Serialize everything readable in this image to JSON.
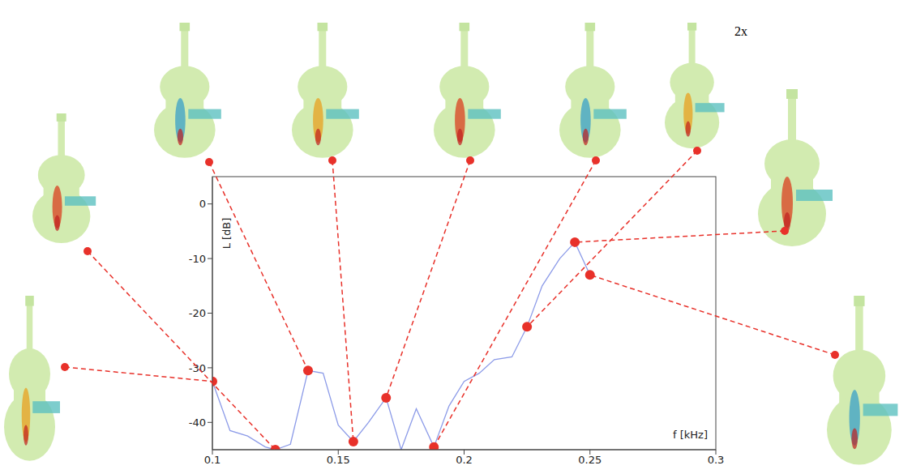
{
  "chart_data": {
    "type": "line",
    "x_label": "f [kHz]",
    "y_label": "L [dB]",
    "annotation": "2x",
    "xlim": [
      0.1,
      0.3
    ],
    "xticks": [
      0.1,
      0.15,
      0.2,
      0.25,
      0.3
    ],
    "ylim": [
      -45,
      5
    ],
    "yticks": [
      -40,
      -30,
      -20,
      -10,
      0
    ],
    "grid": false,
    "color": "#8c9be8",
    "x": [
      0.1,
      0.107,
      0.114,
      0.121,
      0.125,
      0.131,
      0.138,
      0.144,
      0.15,
      0.156,
      0.162,
      0.169,
      0.175,
      0.181,
      0.188,
      0.194,
      0.2,
      0.206,
      0.212,
      0.219,
      0.225,
      0.231,
      0.238,
      0.244,
      0.25
    ],
    "values": [
      -32.5,
      -41.5,
      -42.5,
      -44.5,
      -45,
      -44,
      -30.5,
      -31,
      -40.5,
      -43.5,
      -40,
      -35.5,
      -45,
      -37.5,
      -44.5,
      -37,
      -32.5,
      -31,
      -28.5,
      -28,
      -22.5,
      -15,
      -10,
      -7,
      -13
    ],
    "highlights": {
      "x": [
        0.1,
        0.125,
        0.138,
        0.156,
        0.169,
        0.188,
        0.225,
        0.244,
        0.25
      ],
      "values": [
        -32.5,
        -45,
        -30.5,
        -43.5,
        -35.5,
        -44.5,
        -22.5,
        -7,
        -13
      ],
      "color": "#e8312a",
      "marker": "circle"
    }
  }
}
